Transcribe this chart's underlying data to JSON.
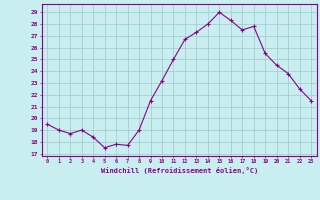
{
  "x": [
    0,
    1,
    2,
    3,
    4,
    5,
    6,
    7,
    8,
    9,
    10,
    11,
    12,
    13,
    14,
    15,
    16,
    17,
    18,
    19,
    20,
    21,
    22,
    23
  ],
  "y": [
    19.5,
    19.0,
    18.7,
    19.0,
    18.4,
    17.5,
    17.8,
    17.7,
    19.0,
    21.5,
    23.2,
    25.0,
    26.7,
    27.3,
    28.0,
    29.0,
    28.3,
    27.5,
    27.8,
    25.5,
    24.5,
    23.8,
    22.5,
    21.5
  ],
  "line_color": "#8b008b",
  "marker": "+",
  "marker_size": 3.0,
  "bg_color": "#c8eef0",
  "grid_color": "#a0c8cc",
  "xlabel": "Windchill (Refroidissement éolien,°C)",
  "xlabel_color": "#8b008b",
  "ylabel_ticks": [
    17,
    18,
    19,
    20,
    21,
    22,
    23,
    24,
    25,
    26,
    27,
    28,
    29
  ],
  "ylim": [
    16.8,
    29.7
  ],
  "xlim": [
    -0.5,
    23.5
  ],
  "tick_color": "#8b008b",
  "spine_color": "#8b008b",
  "title_color": "#8b008b"
}
